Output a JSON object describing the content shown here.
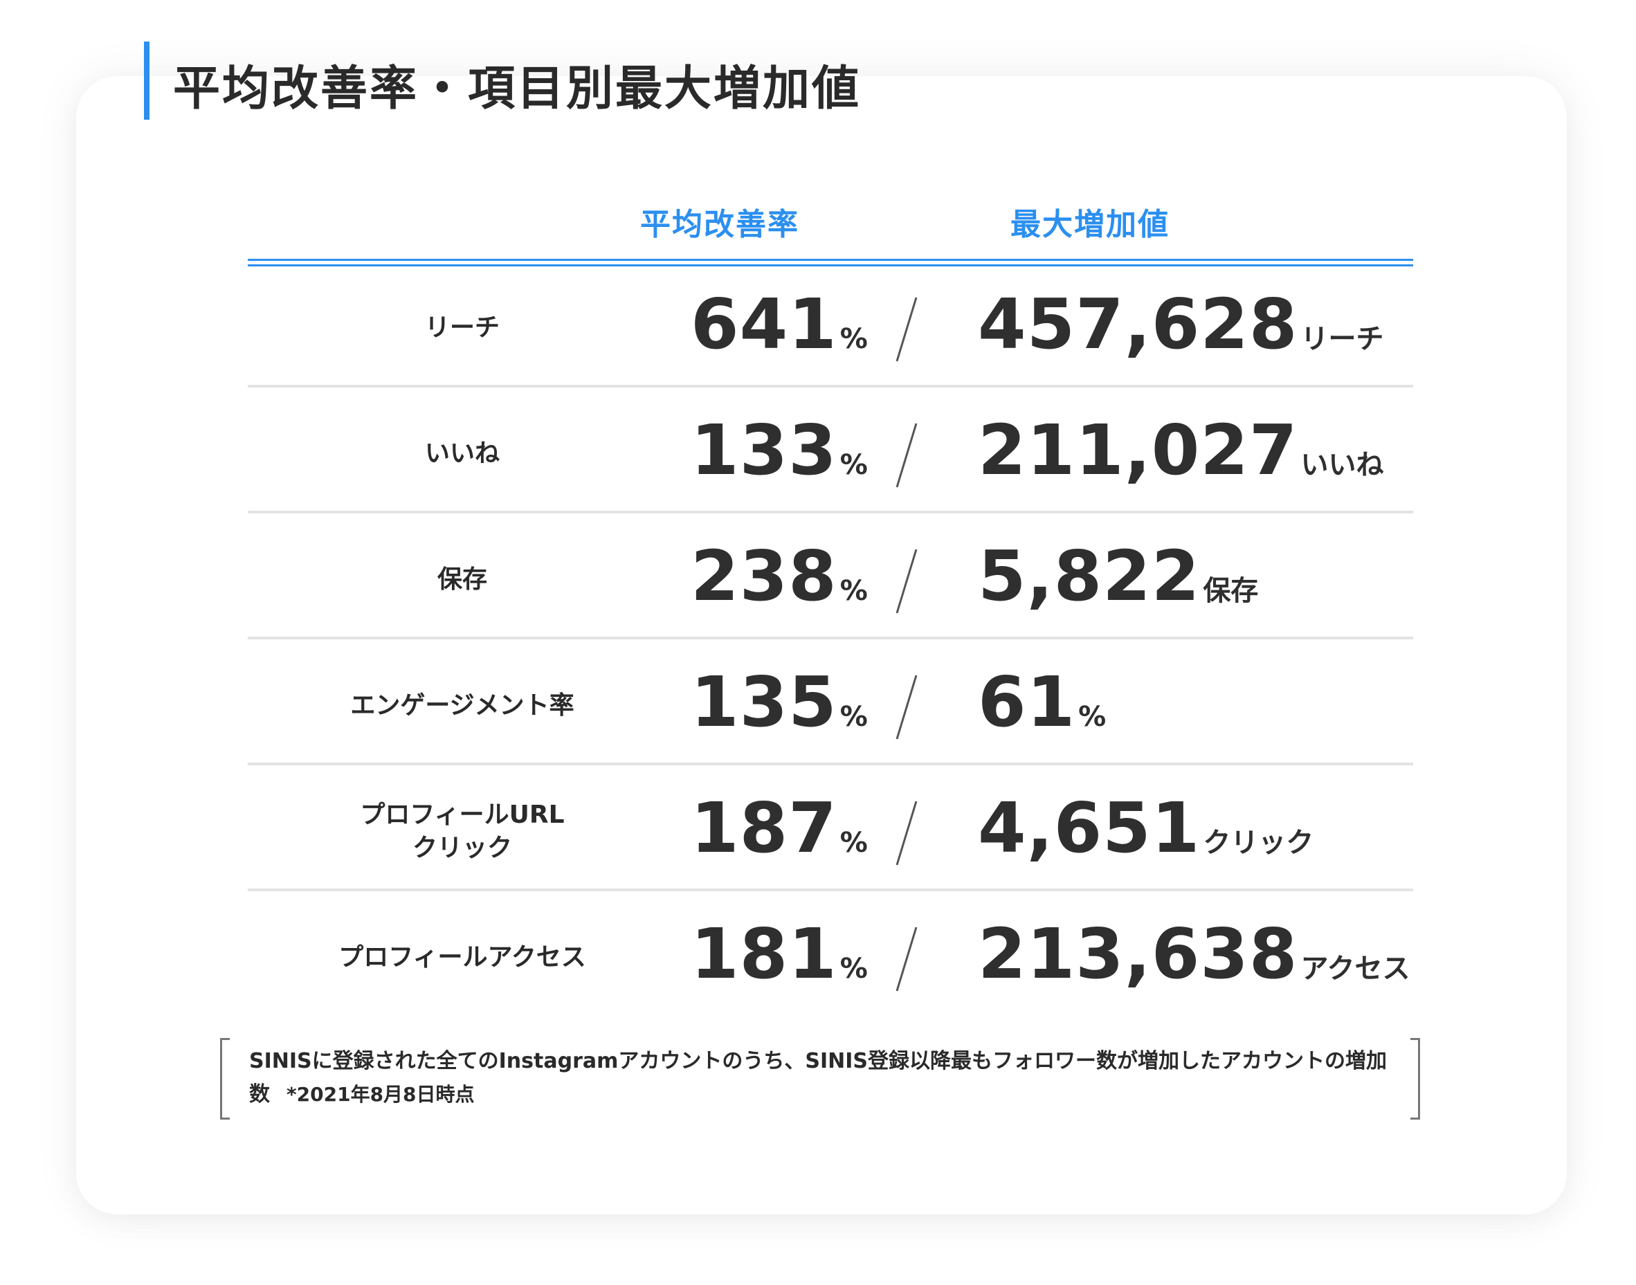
{
  "title": "平均改善率・項目別最大増加値",
  "columns": {
    "avg": "平均改善率",
    "max": "最大増加値"
  },
  "rows": [
    {
      "label_lines": [
        "リーチ"
      ],
      "avg_value": "641",
      "avg_unit": "%",
      "max_value": "457,628",
      "max_unit": "リーチ"
    },
    {
      "label_lines": [
        "いいね"
      ],
      "avg_value": "133",
      "avg_unit": "%",
      "max_value": "211,027",
      "max_unit": "いいね"
    },
    {
      "label_lines": [
        "保存"
      ],
      "avg_value": "238",
      "avg_unit": "%",
      "max_value": "5,822",
      "max_unit": "保存"
    },
    {
      "label_lines": [
        "エンゲージメント率"
      ],
      "avg_value": "135",
      "avg_unit": "%",
      "max_value": "61",
      "max_unit": "%"
    },
    {
      "label_lines": [
        "プロフィールURL",
        "クリック"
      ],
      "avg_value": "187",
      "avg_unit": "%",
      "max_value": "4,651",
      "max_unit": "クリック"
    },
    {
      "label_lines": [
        "プロフィールアクセス"
      ],
      "avg_value": "181",
      "avg_unit": "%",
      "max_value": "213,638",
      "max_unit": "アクセス"
    }
  ],
  "note": {
    "text": "SINISに登録された全てのInstagramアカウントのうち、SINIS登録以降最もフォロワー数が増加したアカウントの増加数",
    "date": "*2021年8月8日時点"
  },
  "colors": {
    "accent": "#2b8ff0",
    "text": "#2f2f2f",
    "divider": "#e3e3e3"
  }
}
